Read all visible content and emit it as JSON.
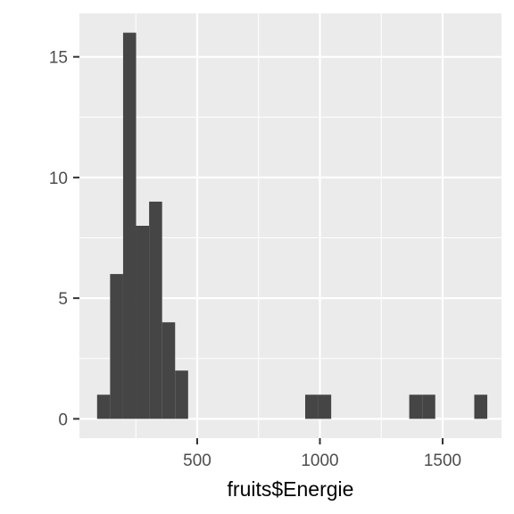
{
  "chart_data": {
    "type": "bar",
    "subtype": "histogram",
    "title": "",
    "xlabel": "fruits$Energie",
    "ylabel": "",
    "bins": [
      {
        "x0": 92,
        "x1": 145,
        "count": 1
      },
      {
        "x0": 145,
        "x1": 198,
        "count": 6
      },
      {
        "x0": 198,
        "x1": 251,
        "count": 16
      },
      {
        "x0": 251,
        "x1": 304,
        "count": 8
      },
      {
        "x0": 304,
        "x1": 357,
        "count": 9
      },
      {
        "x0": 357,
        "x1": 410,
        "count": 4
      },
      {
        "x0": 410,
        "x1": 463,
        "count": 2
      },
      {
        "x0": 463,
        "x1": 516,
        "count": 0
      },
      {
        "x0": 516,
        "x1": 569,
        "count": 0
      },
      {
        "x0": 569,
        "x1": 622,
        "count": 0
      },
      {
        "x0": 622,
        "x1": 675,
        "count": 0
      },
      {
        "x0": 675,
        "x1": 728,
        "count": 0
      },
      {
        "x0": 728,
        "x1": 781,
        "count": 0
      },
      {
        "x0": 781,
        "x1": 834,
        "count": 0
      },
      {
        "x0": 834,
        "x1": 887,
        "count": 0
      },
      {
        "x0": 887,
        "x1": 940,
        "count": 0
      },
      {
        "x0": 940,
        "x1": 993,
        "count": 1
      },
      {
        "x0": 993,
        "x1": 1046,
        "count": 1
      },
      {
        "x0": 1046,
        "x1": 1099,
        "count": 0
      },
      {
        "x0": 1099,
        "x1": 1152,
        "count": 0
      },
      {
        "x0": 1152,
        "x1": 1205,
        "count": 0
      },
      {
        "x0": 1205,
        "x1": 1258,
        "count": 0
      },
      {
        "x0": 1258,
        "x1": 1311,
        "count": 0
      },
      {
        "x0": 1311,
        "x1": 1364,
        "count": 0
      },
      {
        "x0": 1364,
        "x1": 1417,
        "count": 1
      },
      {
        "x0": 1417,
        "x1": 1470,
        "count": 1
      },
      {
        "x0": 1470,
        "x1": 1523,
        "count": 0
      },
      {
        "x0": 1523,
        "x1": 1576,
        "count": 0
      },
      {
        "x0": 1576,
        "x1": 1629,
        "count": 0
      },
      {
        "x0": 1629,
        "x1": 1682,
        "count": 1
      }
    ],
    "xlim": [
      20,
      1740
    ],
    "ylim": [
      -0.8,
      16.8
    ],
    "x_ticks": [
      {
        "value": 500,
        "label": "500"
      },
      {
        "value": 1000,
        "label": "1000"
      },
      {
        "value": 1500,
        "label": "1500"
      }
    ],
    "y_ticks": [
      {
        "value": 0,
        "label": "0"
      },
      {
        "value": 5,
        "label": "5"
      },
      {
        "value": 10,
        "label": "10"
      },
      {
        "value": 15,
        "label": "15"
      }
    ],
    "grid": true,
    "legend": "none",
    "colors": {
      "panel": "#ebebeb",
      "grid": "#ffffff",
      "bar": "#454545",
      "tick": "#333333"
    }
  }
}
